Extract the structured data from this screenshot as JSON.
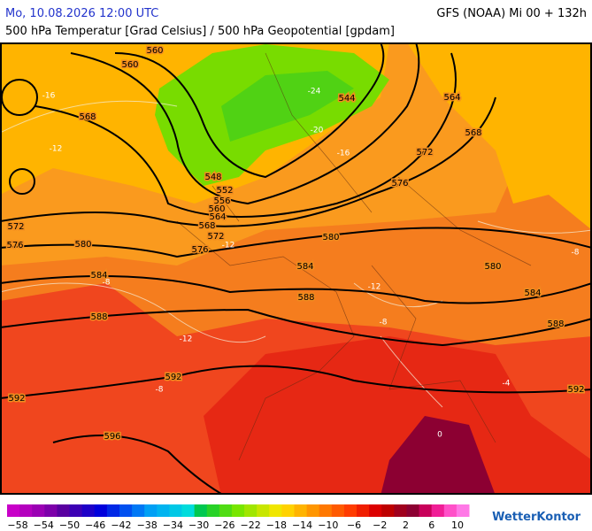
{
  "header": {
    "date": "Mo, 10.08.2026 12:00 UTC",
    "model": "GFS (NOAA) Mi 00 + 132h",
    "subtitle": "500 hPa Temperatur [Grad Celsius] / 500 hPa Geopotential [gpdam]"
  },
  "map": {
    "geopotential_labels": [
      560,
      560,
      568,
      544,
      564,
      568,
      572,
      576,
      548,
      552,
      556,
      560,
      564,
      568,
      572,
      576,
      572,
      576,
      580,
      580,
      580,
      584,
      584,
      584,
      588,
      588,
      588,
      592,
      592,
      592,
      596
    ],
    "temperature_labels": [
      -16,
      -12,
      -24,
      -20,
      -16,
      -12,
      -8,
      -12,
      -8,
      -8,
      -12,
      -4,
      0,
      -8
    ]
  },
  "colorbar": {
    "labels": [
      "−58",
      "−54",
      "−50",
      "−46",
      "−42",
      "−38",
      "−34",
      "−30",
      "−26",
      "−22",
      "−18",
      "−14",
      "−10",
      "−6",
      "−2",
      "2",
      "6",
      "10"
    ],
    "colors": [
      "#c800c8",
      "#b400be",
      "#9b00b4",
      "#7d00aa",
      "#5a00a0",
      "#3c00b4",
      "#1e00c8",
      "#0000dc",
      "#0028e6",
      "#0050f0",
      "#0078f5",
      "#00a0f5",
      "#00b4f0",
      "#00c8e6",
      "#00dcdc",
      "#00c850",
      "#28d228",
      "#50dc14",
      "#78e600",
      "#a0e600",
      "#c8e600",
      "#f0e600",
      "#ffd200",
      "#ffb400",
      "#ff9600",
      "#ff7800",
      "#ff5a00",
      "#ff3c00",
      "#f01e00",
      "#dc0000",
      "#be0000",
      "#a0001e",
      "#8c0032",
      "#c8005a",
      "#f01e96",
      "#ff50c8",
      "#ff78e6"
    ]
  },
  "logo": "WetterKontor"
}
